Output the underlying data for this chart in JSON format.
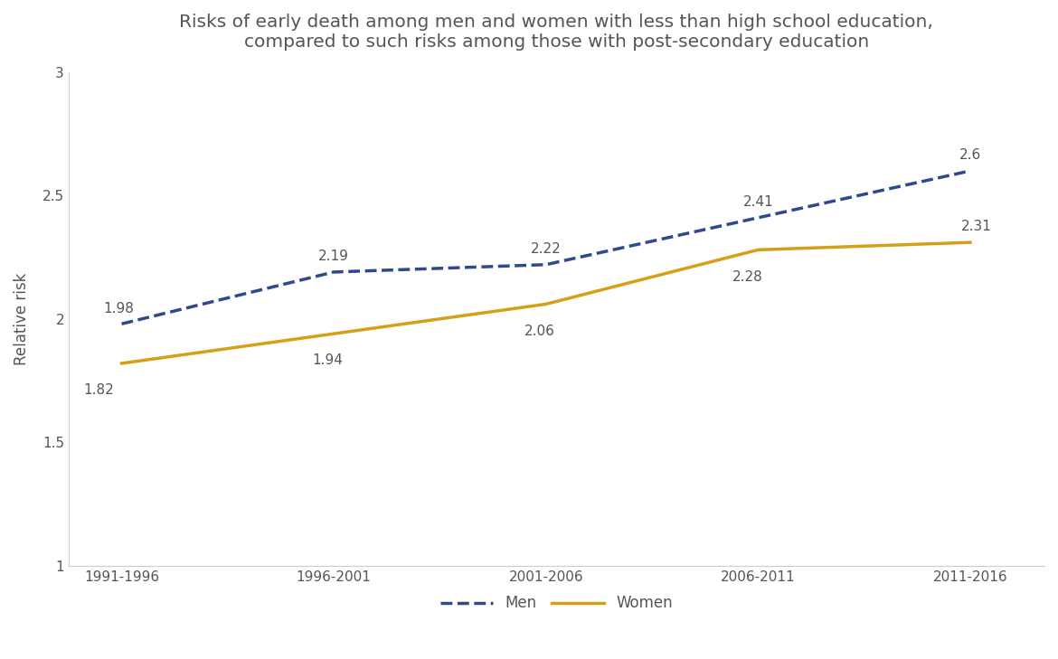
{
  "title_line1": "Risks of early death among men and women with less than high school education,",
  "title_line2": "compared to such risks among those with post-secondary education",
  "xlabel": "",
  "ylabel": "Relative risk",
  "x_labels": [
    "1991-1996",
    "1996-2001",
    "2001-2006",
    "2006-2011",
    "2011-2016"
  ],
  "x_values": [
    0,
    1,
    2,
    3,
    4
  ],
  "men_values": [
    1.98,
    2.19,
    2.22,
    2.41,
    2.6
  ],
  "women_values": [
    1.82,
    1.94,
    2.06,
    2.28,
    2.31
  ],
  "men_labels": [
    "1.98",
    "2.19",
    "2.22",
    "2.41",
    "2.6"
  ],
  "women_labels": [
    "1.82",
    "1.94",
    "2.06",
    "2.28",
    "2.31"
  ],
  "men_color": "#2e4a8e",
  "women_color": "#d4a017",
  "ylim": [
    1.0,
    3.0
  ],
  "yticks": [
    1.0,
    1.5,
    2.0,
    2.5,
    3.0
  ],
  "background_color": "#ffffff",
  "title_fontsize": 14.5,
  "axis_label_fontsize": 12,
  "tick_fontsize": 11,
  "annotation_fontsize": 11,
  "legend_fontsize": 12
}
